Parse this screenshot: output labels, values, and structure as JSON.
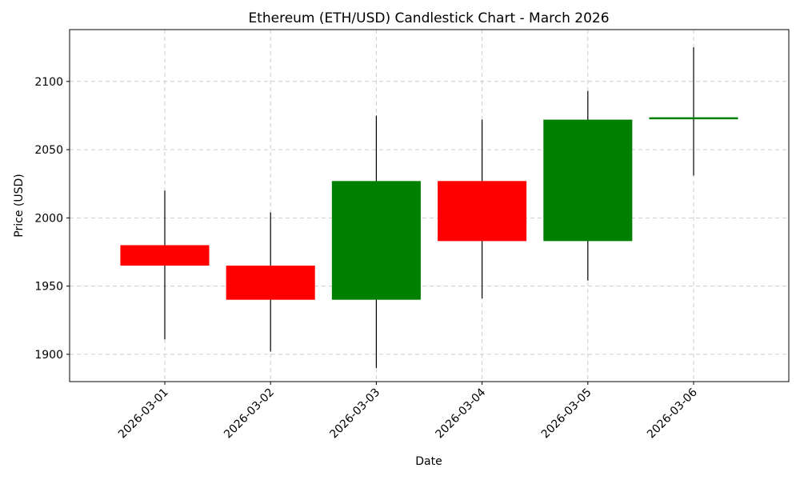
{
  "chart_data": {
    "type": "candlestick",
    "title": "Ethereum (ETH/USD) Candlestick Chart - March 2026",
    "xlabel": "Date",
    "ylabel": "Price (USD)",
    "ylim": [
      1880,
      2138
    ],
    "yticks": [
      1900,
      1950,
      2000,
      2050,
      2100
    ],
    "grid": true,
    "colors": {
      "up": "#008000",
      "down": "#ff0000",
      "wick": "#000000"
    },
    "categories": [
      "2026-03-01",
      "2026-03-02",
      "2026-03-03",
      "2026-03-04",
      "2026-03-05",
      "2026-03-06"
    ],
    "ohlc": [
      {
        "date": "2026-03-01",
        "open": 1980,
        "high": 2020,
        "low": 1911,
        "close": 1965
      },
      {
        "date": "2026-03-02",
        "open": 1965,
        "high": 2004,
        "low": 1902,
        "close": 1940
      },
      {
        "date": "2026-03-03",
        "open": 1940,
        "high": 2075,
        "low": 1890,
        "close": 2027
      },
      {
        "date": "2026-03-04",
        "open": 2027,
        "high": 2072,
        "low": 1941,
        "close": 1983
      },
      {
        "date": "2026-03-05",
        "open": 1983,
        "high": 2093,
        "low": 1954,
        "close": 2072
      },
      {
        "date": "2026-03-06",
        "open": 2072,
        "high": 2125,
        "low": 2031,
        "close": 2073
      }
    ]
  }
}
